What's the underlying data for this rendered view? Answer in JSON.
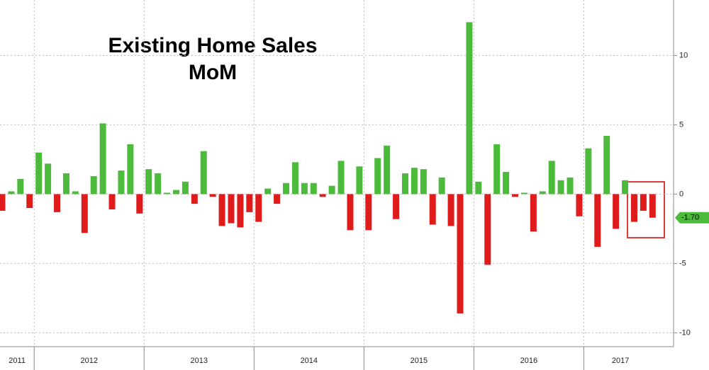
{
  "chart_data": {
    "type": "bar",
    "title": "Existing Home Sales",
    "subtitle": "MoM",
    "categories": [
      "2011",
      null,
      null,
      null,
      "2012",
      null,
      null,
      null,
      null,
      null,
      null,
      null,
      null,
      null,
      null,
      null,
      "2013",
      null,
      null,
      null,
      null,
      null,
      null,
      null,
      null,
      null,
      null,
      null,
      "2014",
      null,
      null,
      null,
      null,
      null,
      null,
      null,
      null,
      null,
      null,
      null,
      "2015",
      null,
      null,
      null,
      null,
      null,
      null,
      null,
      null,
      null,
      null,
      null,
      "2016",
      null,
      null,
      null,
      null,
      null,
      null,
      null,
      null,
      null,
      null,
      null,
      "2017",
      null,
      null,
      null,
      null,
      null,
      null,
      null
    ],
    "values": [
      -1.2,
      0.2,
      1.1,
      -1.0,
      3.0,
      2.2,
      -1.3,
      1.5,
      0.2,
      -2.8,
      1.3,
      5.1,
      -1.1,
      1.7,
      3.6,
      -1.4,
      1.8,
      1.5,
      0.1,
      0.3,
      0.9,
      -0.7,
      3.1,
      -0.2,
      -2.3,
      -2.1,
      -2.4,
      -1.3,
      -2.0,
      0.4,
      -0.7,
      0.8,
      2.3,
      0.8,
      0.8,
      -0.2,
      0.6,
      2.4,
      -2.6,
      2.0,
      -2.6,
      2.6,
      3.5,
      -1.8,
      1.5,
      1.9,
      1.8,
      -2.2,
      1.2,
      -2.3,
      -8.6,
      12.4,
      0.9,
      -5.1,
      3.6,
      1.6,
      -0.2,
      0.1,
      -2.7,
      0.2,
      2.4,
      1.0,
      1.2,
      -1.6,
      3.3,
      -3.8,
      4.2,
      -2.5,
      1.0,
      -2.0,
      -1.2,
      -1.7
    ],
    "positive_color": "#4cbb3c",
    "negative_color": "#e01b1b",
    "ylim": [
      -11,
      14
    ],
    "yticks": [
      -10,
      -5,
      0,
      5,
      10
    ],
    "grid": true,
    "last_value_label": {
      "value": -1.7,
      "label": "-1.70"
    }
  }
}
